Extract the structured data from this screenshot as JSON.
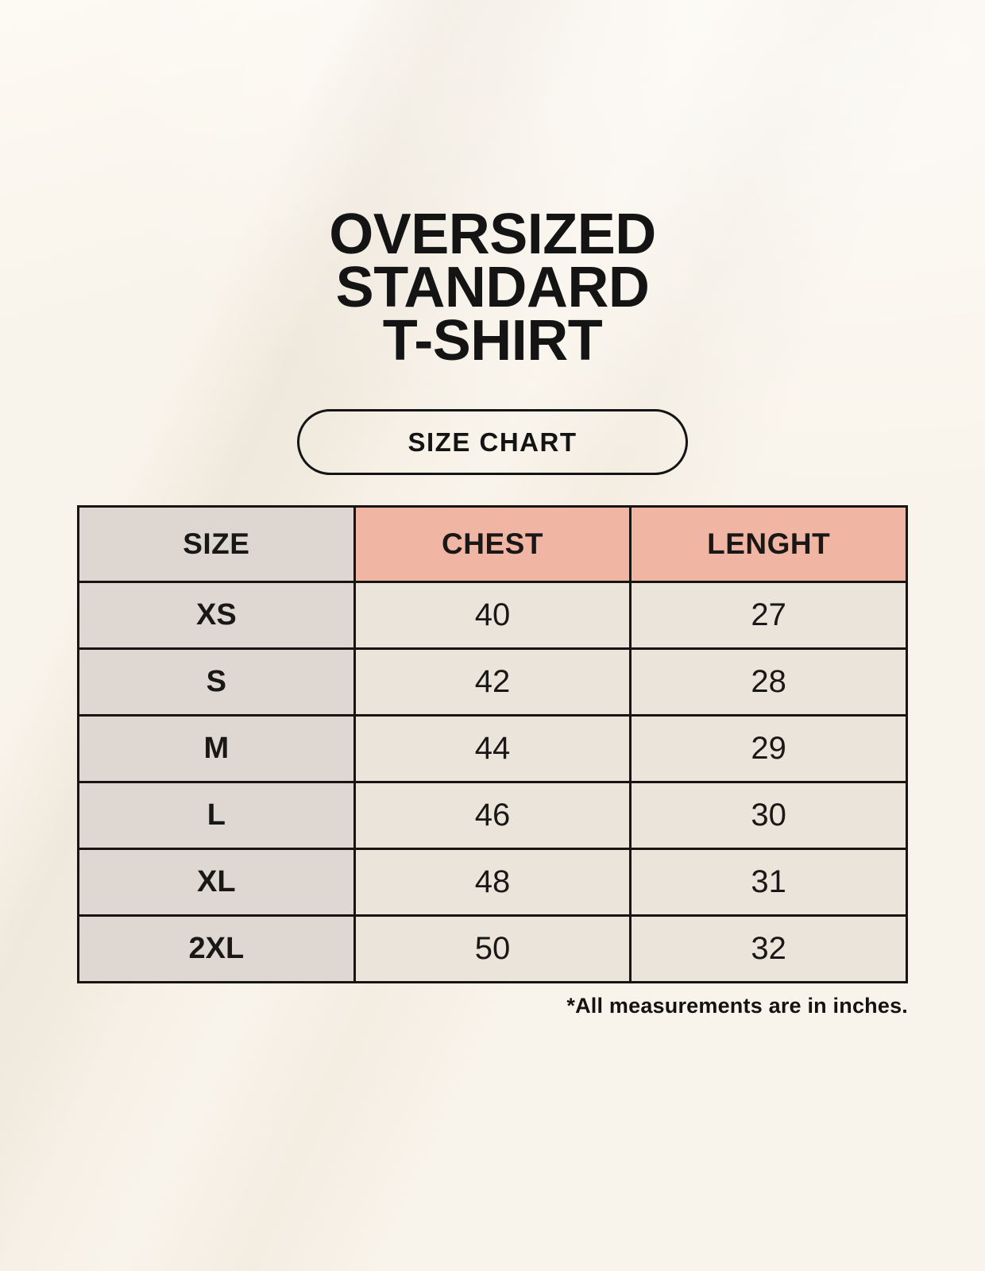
{
  "colors": {
    "page_bg": "#f9f4eb",
    "text": "#1a1817",
    "table_border": "#171412",
    "header_size_bg": "#ddd6d1",
    "header_measure_bg": "#f1b5a4",
    "row_label_bg": "#ded7d2",
    "row_value_bg": "#ebe4da"
  },
  "header": {
    "title_lines": [
      "OVERSIZED",
      "STANDARD",
      "T-SHIRT"
    ],
    "badge_label": "SIZE CHART"
  },
  "size_chart": {
    "columns": [
      "SIZE",
      "CHEST",
      "LENGHT"
    ],
    "rows": [
      {
        "size": "XS",
        "chest": "40",
        "length": "27"
      },
      {
        "size": "S",
        "chest": "42",
        "length": "28"
      },
      {
        "size": "M",
        "chest": "44",
        "length": "29"
      },
      {
        "size": "L",
        "chest": "46",
        "length": "30"
      },
      {
        "size": "XL",
        "chest": "48",
        "length": "31"
      },
      {
        "size": "2XL",
        "chest": "50",
        "length": "32"
      }
    ],
    "footnote": "*All measurements are in inches."
  },
  "chart_data": {
    "type": "table",
    "title": "OVERSIZED STANDARD T-SHIRT",
    "subtitle": "SIZE CHART",
    "columns": [
      "SIZE",
      "CHEST",
      "LENGHT"
    ],
    "rows": [
      [
        "XS",
        40,
        27
      ],
      [
        "S",
        42,
        28
      ],
      [
        "M",
        44,
        29
      ],
      [
        "L",
        46,
        30
      ],
      [
        "XL",
        48,
        31
      ],
      [
        "2XL",
        50,
        32
      ]
    ],
    "note": "*All measurements are in inches.",
    "units": "inches"
  }
}
